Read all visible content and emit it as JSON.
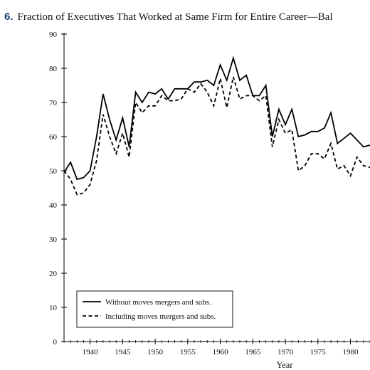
{
  "figure": {
    "number": "6.",
    "title": "Fraction of Executives That Worked at Same Firm for Entire Career—Bal"
  },
  "chart_data": {
    "type": "line",
    "title": "Fraction of Executives That Worked at Same Firm for Entire Career—Bal",
    "xlabel": "Year",
    "ylabel": "",
    "xlim": [
      1936,
      1983
    ],
    "ylim": [
      0,
      90
    ],
    "x_ticks": [
      1940,
      1945,
      1950,
      1955,
      1960,
      1965,
      1970,
      1975,
      1980
    ],
    "y_ticks": [
      0,
      10,
      20,
      30,
      40,
      50,
      60,
      70,
      80,
      90
    ],
    "grid": false,
    "legend_position": "bottom-left",
    "x": [
      1936,
      1937,
      1938,
      1939,
      1940,
      1941,
      1942,
      1943,
      1944,
      1945,
      1946,
      1947,
      1948,
      1949,
      1950,
      1951,
      1952,
      1953,
      1954,
      1955,
      1956,
      1957,
      1958,
      1959,
      1960,
      1961,
      1962,
      1963,
      1964,
      1965,
      1966,
      1967,
      1968,
      1969,
      1970,
      1971,
      1972,
      1973,
      1974,
      1975,
      1976,
      1977,
      1978,
      1979,
      1980,
      1981,
      1982,
      1983
    ],
    "series": [
      {
        "name": "Without moves mergers and subs.",
        "line_style": "solid",
        "values": [
          49.5,
          52.5,
          47.5,
          48,
          50,
          60,
          72.5,
          65,
          59,
          65.5,
          57,
          73,
          70,
          73,
          72.5,
          74,
          71,
          74,
          74,
          74,
          76,
          76,
          76.5,
          75,
          81,
          76.5,
          83,
          76.5,
          78,
          72,
          72,
          75,
          60,
          68,
          63.5,
          68,
          60,
          60.5,
          61.5,
          61.5,
          62.5,
          67,
          58,
          59.5,
          61,
          59,
          57,
          57.5
        ]
      },
      {
        "name": "Including moves mergers and subs.",
        "line_style": "dashed",
        "values": [
          50,
          47.5,
          43,
          43.5,
          46,
          53,
          66.5,
          60,
          55,
          61,
          54,
          70,
          67,
          69,
          69,
          72,
          70.5,
          70.5,
          71,
          74,
          73,
          75.5,
          73,
          69,
          77,
          68.5,
          77.5,
          71,
          72,
          72,
          70.5,
          72,
          57,
          65,
          61,
          62,
          50,
          51.5,
          55,
          55,
          53.5,
          58,
          50.5,
          51.5,
          48.5,
          54,
          51.5,
          51
        ]
      }
    ]
  }
}
